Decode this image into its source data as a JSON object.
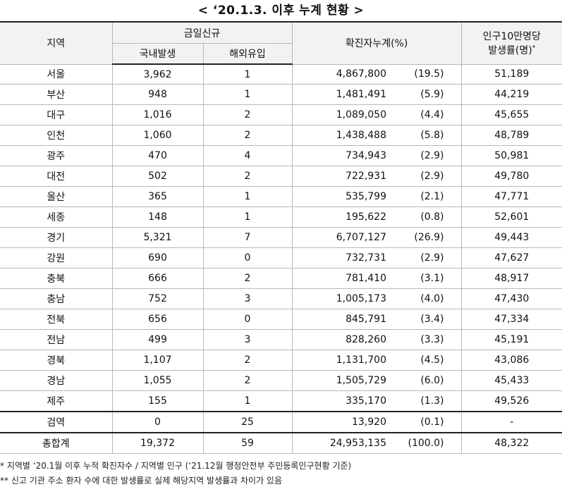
{
  "title": "< ‘20.1.3. 이후 누계 현황 >",
  "headers": {
    "region": "지역",
    "new_today": "금일신규",
    "domestic": "국내발생",
    "overseas": "해외유입",
    "cumulative": "확진자누계(%)",
    "rate_line1": "인구10만명당",
    "rate_line2": "발생률(명)",
    "rate_mark": "*"
  },
  "rows": [
    {
      "region": "서울",
      "domestic": "3,962",
      "overseas": "1",
      "cumulative": "4,867,800",
      "pct": "(19.5)",
      "rate": "51,189"
    },
    {
      "region": "부산",
      "domestic": "948",
      "overseas": "1",
      "cumulative": "1,481,491",
      "pct": "(5.9)",
      "rate": "44,219"
    },
    {
      "region": "대구",
      "domestic": "1,016",
      "overseas": "2",
      "cumulative": "1,089,050",
      "pct": "(4.4)",
      "rate": "45,655"
    },
    {
      "region": "인천",
      "domestic": "1,060",
      "overseas": "2",
      "cumulative": "1,438,488",
      "pct": "(5.8)",
      "rate": "48,789"
    },
    {
      "region": "광주",
      "domestic": "470",
      "overseas": "4",
      "cumulative": "734,943",
      "pct": "(2.9)",
      "rate": "50,981"
    },
    {
      "region": "대전",
      "domestic": "502",
      "overseas": "2",
      "cumulative": "722,931",
      "pct": "(2.9)",
      "rate": "49,780"
    },
    {
      "region": "울산",
      "domestic": "365",
      "overseas": "1",
      "cumulative": "535,799",
      "pct": "(2.1)",
      "rate": "47,771"
    },
    {
      "region": "세종",
      "domestic": "148",
      "overseas": "1",
      "cumulative": "195,622",
      "pct": "(0.8)",
      "rate": "52,601"
    },
    {
      "region": "경기",
      "domestic": "5,321",
      "overseas": "7",
      "cumulative": "6,707,127",
      "pct": "(26.9)",
      "rate": "49,443"
    },
    {
      "region": "강원",
      "domestic": "690",
      "overseas": "0",
      "cumulative": "732,731",
      "pct": "(2.9)",
      "rate": "47,627"
    },
    {
      "region": "충북",
      "domestic": "666",
      "overseas": "2",
      "cumulative": "781,410",
      "pct": "(3.1)",
      "rate": "48,917"
    },
    {
      "region": "충남",
      "domestic": "752",
      "overseas": "3",
      "cumulative": "1,005,173",
      "pct": "(4.0)",
      "rate": "47,430"
    },
    {
      "region": "전북",
      "domestic": "656",
      "overseas": "0",
      "cumulative": "845,791",
      "pct": "(3.4)",
      "rate": "47,334"
    },
    {
      "region": "전남",
      "domestic": "499",
      "overseas": "3",
      "cumulative": "828,260",
      "pct": "(3.3)",
      "rate": "45,191"
    },
    {
      "region": "경북",
      "domestic": "1,107",
      "overseas": "2",
      "cumulative": "1,131,700",
      "pct": "(4.5)",
      "rate": "43,086"
    },
    {
      "region": "경남",
      "domestic": "1,055",
      "overseas": "2",
      "cumulative": "1,505,729",
      "pct": "(6.0)",
      "rate": "45,433"
    },
    {
      "region": "제주",
      "domestic": "155",
      "overseas": "1",
      "cumulative": "335,170",
      "pct": "(1.3)",
      "rate": "49,526"
    }
  ],
  "quarantine": {
    "region": "검역",
    "domestic": "0",
    "overseas": "25",
    "cumulative": "13,920",
    "pct": "(0.1)",
    "rate": "-"
  },
  "total": {
    "region": "총합계",
    "domestic": "19,372",
    "overseas": "59",
    "cumulative": "24,953,135",
    "pct": "(100.0)",
    "rate": "48,322"
  },
  "notes": [
    "* 지역별 ‘20.1월 이후 누적 확진자수 / 지역별 인구 (‘21.12월 행정안전부 주민등록인구현황 기준)",
    "** 신고 기관 주소 환자 수에 대한 발생률로 실제 해당지역 발생률과 차이가 있음"
  ]
}
